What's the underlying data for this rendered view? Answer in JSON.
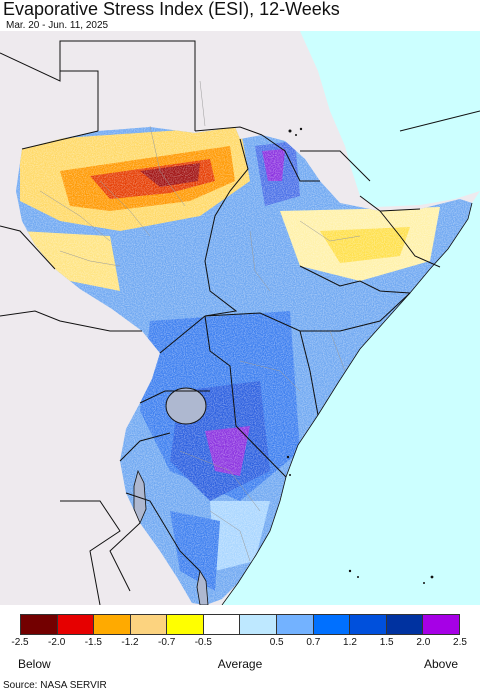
{
  "header": {
    "title": "Evaporative Stress Index (ESI), 12-Weeks",
    "subtitle": "Mar. 20 - Jun. 11, 2025"
  },
  "map": {
    "region": "East Africa",
    "colors": {
      "land_nodata": "#eeeaee",
      "water": "#ccffff",
      "lake": "#aeb8d0",
      "border": "#111111",
      "admin_border": "#9a9a9a"
    }
  },
  "legend": {
    "colors": [
      "#730000",
      "#e60000",
      "#ffaa00",
      "#fcd37f",
      "#ffff00",
      "#ffffff",
      "#bee8ff",
      "#73b2ff",
      "#0070ff",
      "#0050dc",
      "#0032a0",
      "#a600e6"
    ],
    "tick_labels": [
      "-2.5",
      "-2.0",
      "-1.5",
      "-1.2",
      "-0.7",
      "-0.5",
      "0.5",
      "0.7",
      "1.2",
      "1.5",
      "2.0",
      "2.5"
    ],
    "below_label": "Below",
    "average_label": "Average",
    "above_label": "Above"
  },
  "footer": {
    "source": "Source: NASA SERVIR"
  }
}
